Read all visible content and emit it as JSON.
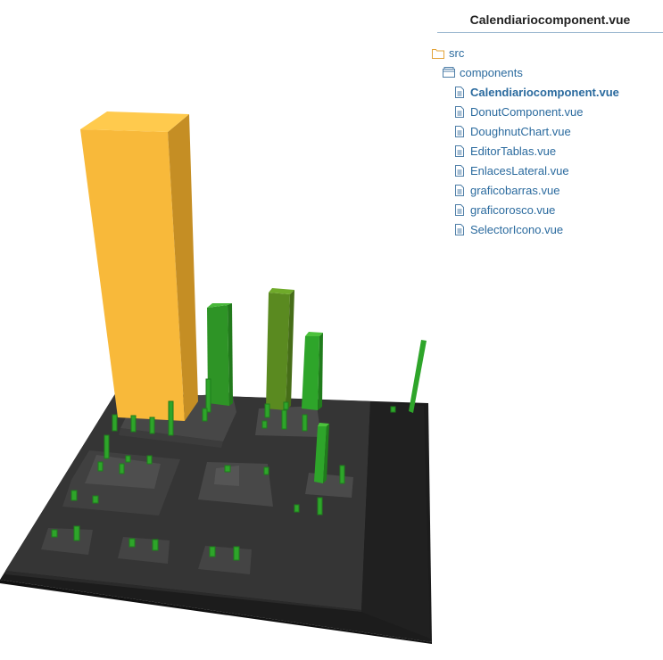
{
  "panel": {
    "title": "Calendiariocomponent.vue",
    "tree": [
      {
        "label": "src",
        "type": "folder",
        "level": 0
      },
      {
        "label": "components",
        "type": "package",
        "level": 1
      },
      {
        "label": "Calendiariocomponent.vue",
        "type": "file",
        "level": 2,
        "active": true
      },
      {
        "label": "DonutComponent.vue",
        "type": "file",
        "level": 2
      },
      {
        "label": "DoughnutChart.vue",
        "type": "file",
        "level": 2
      },
      {
        "label": "EditorTablas.vue",
        "type": "file",
        "level": 2
      },
      {
        "label": "EnlacesLateral.vue",
        "type": "file",
        "level": 2
      },
      {
        "label": "graficobarras.vue",
        "type": "file",
        "level": 2
      },
      {
        "label": "graficorosco.vue",
        "type": "file",
        "level": 2
      },
      {
        "label": "SelectorIcono.vue",
        "type": "file",
        "level": 2
      }
    ]
  },
  "colors": {
    "highlight_building": "#f8b93a",
    "building": "#2fa32a",
    "building_dark": "#5a8a20",
    "district": "#3a3a3a",
    "ground": "#1c1c1c",
    "link": "#2a6a9e",
    "folder_icon": "#e3a43a",
    "file_icon": "#4f7fa8"
  },
  "view": {
    "type": "3d-code-city"
  }
}
